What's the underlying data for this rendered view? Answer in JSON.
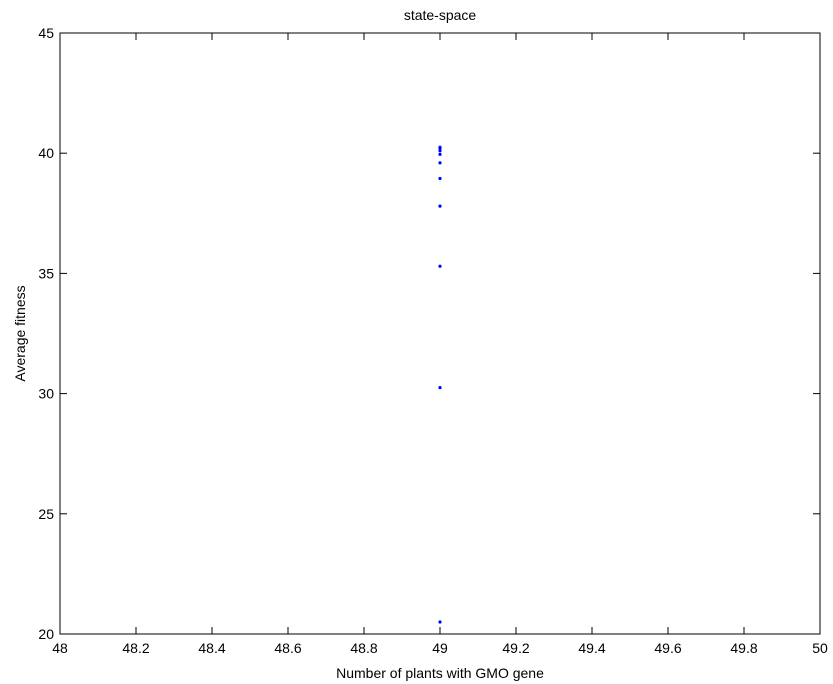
{
  "chart_data": {
    "type": "scatter",
    "title": "state-space",
    "xlabel": "Number of plants with GMO gene",
    "ylabel": "Average fitness",
    "xlim": [
      48,
      50
    ],
    "ylim": [
      20,
      45
    ],
    "xticks": [
      "48",
      "48.2",
      "48.4",
      "48.6",
      "48.8",
      "49",
      "49.2",
      "49.4",
      "49.6",
      "49.8",
      "50"
    ],
    "yticks": [
      "20",
      "25",
      "30",
      "35",
      "40",
      "45"
    ],
    "grid": false,
    "marker_color": "#0000ff",
    "points": [
      {
        "x": 49,
        "y": 20.5
      },
      {
        "x": 49,
        "y": 30.25
      },
      {
        "x": 49,
        "y": 35.3
      },
      {
        "x": 49,
        "y": 37.8
      },
      {
        "x": 49,
        "y": 38.95
      },
      {
        "x": 49,
        "y": 39.6
      },
      {
        "x": 49,
        "y": 39.95
      },
      {
        "x": 49,
        "y": 40.1
      },
      {
        "x": 49,
        "y": 40.2
      },
      {
        "x": 49,
        "y": 40.25
      }
    ]
  }
}
